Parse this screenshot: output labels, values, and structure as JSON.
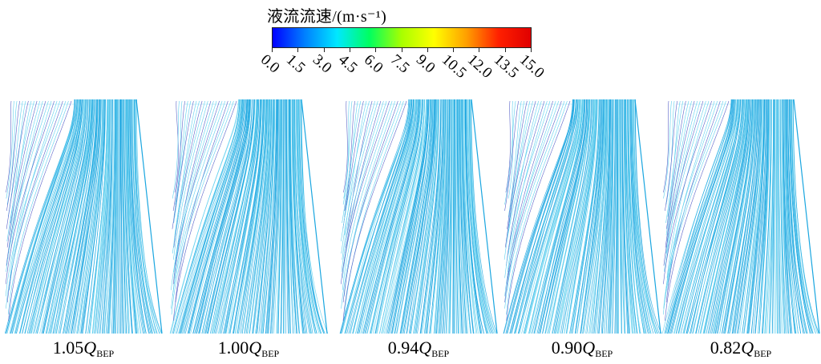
{
  "legend": {
    "title": "液流流速/(m·s⁻¹)",
    "ticks": [
      "0.0",
      "1.5",
      "3.0",
      "4.5",
      "6.0",
      "7.5",
      "9.0",
      "10.5",
      "12.0",
      "13.5",
      "15.0"
    ],
    "range": [
      0,
      15
    ],
    "colormap": [
      "#0000ff",
      "#0080ff",
      "#00e8ff",
      "#00ff60",
      "#a8ff00",
      "#ffff00",
      "#ffa000",
      "#ff2000",
      "#e00000"
    ]
  },
  "panels": [
    {
      "coef": "1.05",
      "symbol": "Q",
      "subscript": "BEP"
    },
    {
      "coef": "1.00",
      "symbol": "Q",
      "subscript": "BEP"
    },
    {
      "coef": "0.94",
      "symbol": "Q",
      "subscript": "BEP"
    },
    {
      "coef": "0.90",
      "symbol": "Q",
      "subscript": "BEP"
    },
    {
      "coef": "0.82",
      "symbol": "Q",
      "subscript": "BEP"
    }
  ],
  "colors": {
    "streamline_main": "#1aa6e0",
    "streamline_light": "#5fd0ee",
    "streamline_slow": "#5a63c8"
  }
}
